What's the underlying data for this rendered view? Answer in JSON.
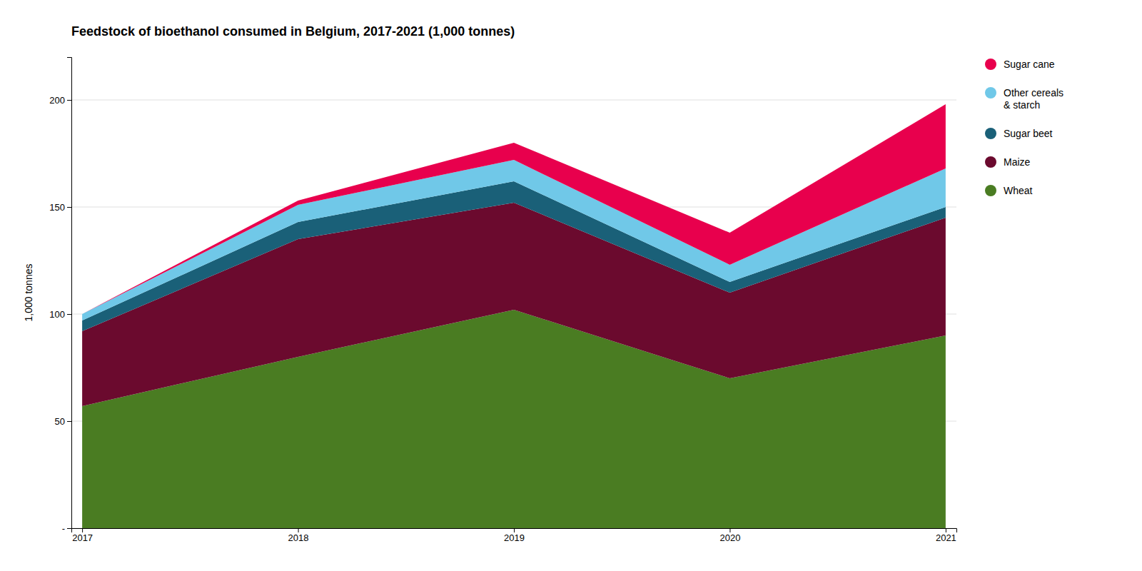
{
  "chart_data": {
    "type": "area",
    "stacked": true,
    "title": "Feedstock of bioethanol consumed in Belgium, 2017-2021 (1,000 tonnes)",
    "y_label": "1,000 tonnes",
    "x": [
      2017,
      2018,
      2019,
      2020,
      2021
    ],
    "xlim": [
      2016.95,
      2021.05
    ],
    "xticks": [
      2017,
      2018,
      2019,
      2020,
      2021
    ],
    "ylim": [
      0,
      220
    ],
    "yticks": [
      {
        "value": 0,
        "label": "-"
      },
      50,
      100,
      150,
      200
    ],
    "grid": true,
    "legend": "right",
    "series": [
      {
        "name": "Wheat",
        "color": "#4a7c22",
        "values": [
          57,
          80,
          102,
          70,
          90
        ]
      },
      {
        "name": "Maize",
        "color": "#6b0a2e",
        "values": [
          35,
          55,
          50,
          40,
          55
        ]
      },
      {
        "name": "Sugar beet",
        "color": "#1a6078",
        "values": [
          5,
          8,
          10,
          5,
          5
        ]
      },
      {
        "name": "Other cereals\n& starch",
        "color": "#70c8e8",
        "values": [
          3,
          8,
          10,
          8,
          18
        ]
      },
      {
        "name": "Sugar cane",
        "color": "#e8004d",
        "values": [
          0,
          2,
          8,
          15,
          30
        ]
      }
    ]
  }
}
